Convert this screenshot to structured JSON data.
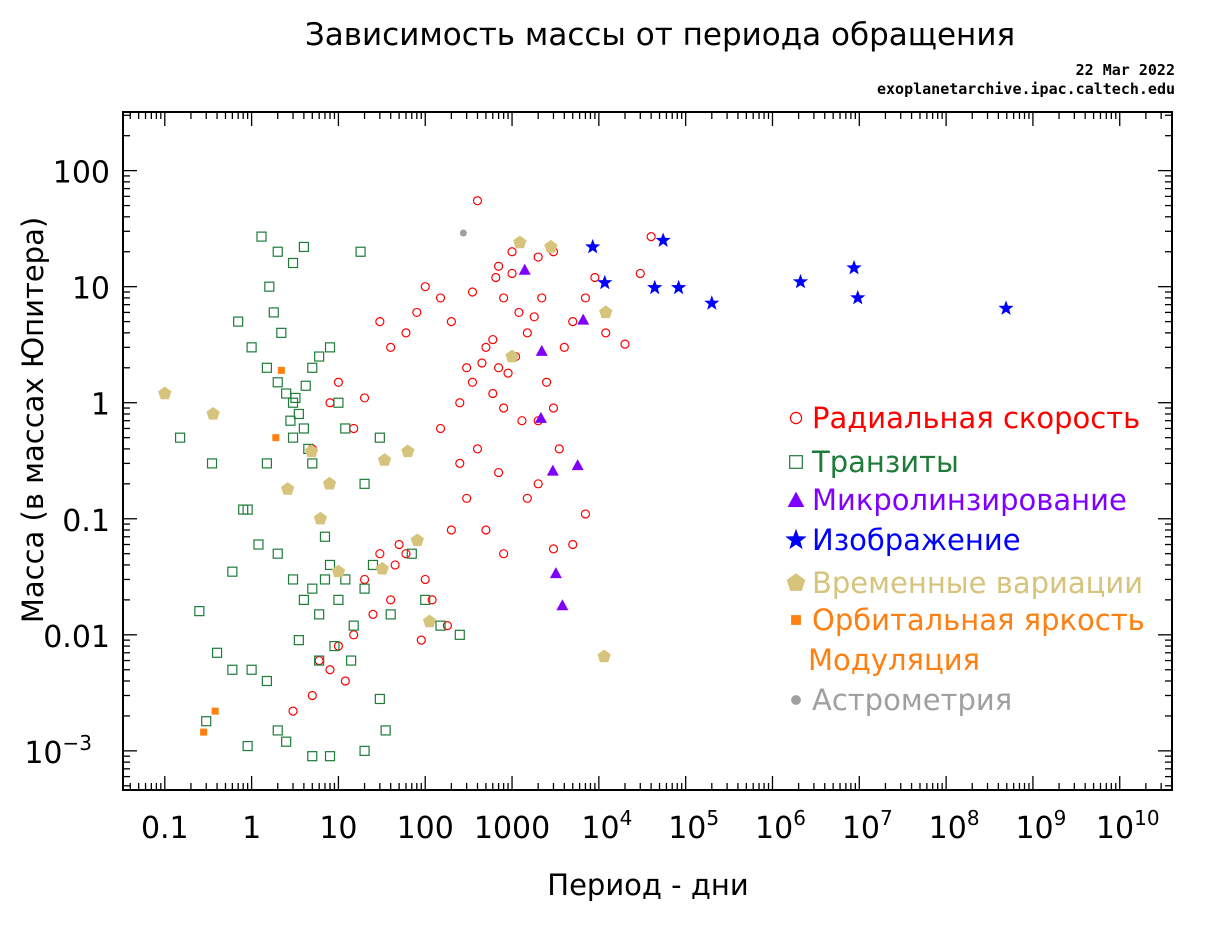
{
  "chart_data": {
    "type": "scatter",
    "title": "Зависимость массы от периода обращения",
    "subtitle_date": "22 Mar 2022",
    "subtitle_source": "exoplanetarchive.ipac.caltech.edu",
    "xlabel": "Период - дни",
    "ylabel": "Масса (в массах Юпитера)",
    "x_scale": "log",
    "y_scale": "log",
    "xlim": [
      0.033,
      40000000000.0
    ],
    "ylim": [
      0.00046,
      320
    ],
    "grid": false,
    "legend_position": "right",
    "x_tick_labels": [
      {
        "value": 0.1,
        "base": "0.1",
        "exp": ""
      },
      {
        "value": 1,
        "base": "1",
        "exp": ""
      },
      {
        "value": 10,
        "base": "10",
        "exp": ""
      },
      {
        "value": 100,
        "base": "100",
        "exp": ""
      },
      {
        "value": 1000,
        "base": "1000",
        "exp": ""
      },
      {
        "value": 10000.0,
        "base": "10",
        "exp": "4"
      },
      {
        "value": 100000.0,
        "base": "10",
        "exp": "5"
      },
      {
        "value": 1000000.0,
        "base": "10",
        "exp": "6"
      },
      {
        "value": 10000000.0,
        "base": "10",
        "exp": "7"
      },
      {
        "value": 100000000.0,
        "base": "10",
        "exp": "8"
      },
      {
        "value": 1000000000.0,
        "base": "10",
        "exp": "9"
      },
      {
        "value": 10000000000.0,
        "base": "10",
        "exp": "10"
      }
    ],
    "y_tick_labels": [
      {
        "value": 100,
        "base": "100",
        "exp": ""
      },
      {
        "value": 10,
        "base": "10",
        "exp": ""
      },
      {
        "value": 1,
        "base": "1",
        "exp": ""
      },
      {
        "value": 0.1,
        "base": "0.1",
        "exp": ""
      },
      {
        "value": 0.01,
        "base": "0.01",
        "exp": ""
      },
      {
        "value": 0.001,
        "base": "10",
        "exp": "−3"
      }
    ],
    "series": [
      {
        "name": "Радиальная скорость",
        "marker": "circle-open",
        "color": "#ff0000",
        "points": [
          [
            400,
            55
          ],
          [
            1000,
            20
          ],
          [
            2000,
            18
          ],
          [
            3000,
            20
          ],
          [
            650,
            12
          ],
          [
            800,
            8
          ],
          [
            1200,
            6
          ],
          [
            1500,
            4
          ],
          [
            500,
            3
          ],
          [
            700,
            2
          ],
          [
            900,
            1.8
          ],
          [
            1100,
            2.5
          ],
          [
            300,
            2
          ],
          [
            350,
            1.5
          ],
          [
            600,
            1.2
          ],
          [
            800,
            0.9
          ],
          [
            1300,
            0.7
          ],
          [
            2500,
            1.5
          ],
          [
            4000,
            3
          ],
          [
            5000,
            5
          ],
          [
            7000,
            8
          ],
          [
            9000,
            12
          ],
          [
            12000,
            4
          ],
          [
            20000,
            3.2
          ],
          [
            30000,
            13
          ],
          [
            40000,
            27
          ],
          [
            200,
            5
          ],
          [
            150,
            8
          ],
          [
            100,
            10
          ],
          [
            80,
            6
          ],
          [
            60,
            4
          ],
          [
            40,
            3
          ],
          [
            30,
            5
          ],
          [
            20,
            1.1
          ],
          [
            15,
            0.6
          ],
          [
            10,
            1.5
          ],
          [
            8,
            1
          ],
          [
            5,
            0.4
          ],
          [
            400,
            0.4
          ],
          [
            250,
            0.3
          ],
          [
            700,
            0.25
          ],
          [
            1500,
            0.15
          ],
          [
            2000,
            0.2
          ],
          [
            3500,
            0.4
          ],
          [
            5000,
            0.06
          ],
          [
            7000,
            0.11
          ],
          [
            500,
            0.08
          ],
          [
            800,
            0.05
          ],
          [
            300,
            0.15
          ],
          [
            200,
            0.08
          ],
          [
            100,
            0.03
          ],
          [
            60,
            0.05
          ],
          [
            40,
            0.02
          ],
          [
            25,
            0.015
          ],
          [
            15,
            0.01
          ],
          [
            10,
            0.008
          ],
          [
            8,
            0.005
          ],
          [
            6,
            0.006
          ],
          [
            20,
            0.03
          ],
          [
            30,
            0.05
          ],
          [
            50,
            0.06
          ],
          [
            120,
            0.02
          ],
          [
            180,
            0.012
          ],
          [
            90,
            0.009
          ],
          [
            3,
            0.0022
          ],
          [
            5,
            0.003
          ],
          [
            12,
            0.004
          ],
          [
            45,
            0.04
          ],
          [
            2000,
            0.7
          ],
          [
            3000,
            0.9
          ],
          [
            600,
            3.5
          ],
          [
            450,
            2.2
          ],
          [
            1800,
            5.5
          ],
          [
            2200,
            8
          ],
          [
            1000,
            13
          ],
          [
            700,
            15
          ],
          [
            350,
            9
          ],
          [
            250,
            1
          ],
          [
            150,
            0.6
          ],
          [
            3000,
            0.055
          ]
        ]
      },
      {
        "name": "Транзиты",
        "marker": "square-open",
        "color": "#1e7b3a",
        "points": [
          [
            1.3,
            27
          ],
          [
            2,
            20
          ],
          [
            3,
            16
          ],
          [
            4,
            22
          ],
          [
            18,
            20
          ],
          [
            0.7,
            5
          ],
          [
            1,
            3
          ],
          [
            1.5,
            2
          ],
          [
            2,
            1.5
          ],
          [
            2.5,
            1.2
          ],
          [
            3,
            1
          ],
          [
            3.5,
            0.8
          ],
          [
            4,
            0.6
          ],
          [
            3,
            0.5
          ],
          [
            4.5,
            0.4
          ],
          [
            5,
            0.3
          ],
          [
            2.8,
            0.7
          ],
          [
            3.2,
            1.1
          ],
          [
            4.2,
            1.4
          ],
          [
            5,
            2
          ],
          [
            6,
            2.5
          ],
          [
            2.2,
            4
          ],
          [
            1.8,
            6
          ],
          [
            1.6,
            10
          ],
          [
            8,
            3
          ],
          [
            10,
            1
          ],
          [
            12,
            0.6
          ],
          [
            20,
            0.2
          ],
          [
            30,
            0.5
          ],
          [
            0.15,
            0.5
          ],
          [
            0.35,
            0.3
          ],
          [
            0.9,
            0.12
          ],
          [
            1.2,
            0.06
          ],
          [
            2,
            0.05
          ],
          [
            3,
            0.03
          ],
          [
            4,
            0.02
          ],
          [
            5,
            0.025
          ],
          [
            6,
            0.015
          ],
          [
            7,
            0.03
          ],
          [
            8,
            0.04
          ],
          [
            10,
            0.02
          ],
          [
            12,
            0.03
          ],
          [
            15,
            0.012
          ],
          [
            20,
            0.025
          ],
          [
            25,
            0.04
          ],
          [
            40,
            0.015
          ],
          [
            70,
            0.05
          ],
          [
            100,
            0.02
          ],
          [
            150,
            0.012
          ],
          [
            250,
            0.01
          ],
          [
            0.25,
            0.016
          ],
          [
            0.4,
            0.007
          ],
          [
            0.6,
            0.005
          ],
          [
            1,
            0.005
          ],
          [
            1.5,
            0.004
          ],
          [
            2,
            0.0015
          ],
          [
            2.5,
            0.0012
          ],
          [
            5,
            0.0009
          ],
          [
            8,
            0.0009
          ],
          [
            20,
            0.001
          ],
          [
            30,
            0.0028
          ],
          [
            35,
            0.0015
          ],
          [
            0.3,
            0.0018
          ],
          [
            0.9,
            0.0011
          ],
          [
            3.5,
            0.009
          ],
          [
            6,
            0.006
          ],
          [
            9,
            0.008
          ],
          [
            14,
            0.006
          ],
          [
            0.6,
            0.035
          ],
          [
            0.8,
            0.12
          ],
          [
            1.5,
            0.3
          ],
          [
            7,
            0.07
          ]
        ]
      },
      {
        "name": "Микролинзирование",
        "marker": "triangle",
        "color": "#8000ff",
        "points": [
          [
            1400,
            14
          ],
          [
            2200,
            2.8
          ],
          [
            2150,
            0.74
          ],
          [
            2950,
            0.26
          ],
          [
            5700,
            0.29
          ],
          [
            3200,
            0.034
          ],
          [
            3800,
            0.018
          ],
          [
            6600,
            5.2
          ]
        ]
      },
      {
        "name": "Изображение",
        "marker": "star",
        "color": "#0000ff",
        "points": [
          [
            8500,
            22
          ],
          [
            11700,
            10.8
          ],
          [
            44000,
            9.8
          ],
          [
            55000,
            25
          ],
          [
            83000,
            9.8
          ],
          [
            200000,
            7.2
          ],
          [
            2100000,
            11
          ],
          [
            8700000,
            14.5
          ],
          [
            9600000,
            8
          ],
          [
            490000000,
            6.5
          ]
        ]
      },
      {
        "name": "Временные вариации",
        "marker": "pentagon",
        "color": "#d6c47c",
        "points": [
          [
            0.1,
            1.2
          ],
          [
            0.36,
            0.8
          ],
          [
            11500,
            0.0065
          ],
          [
            1230,
            24
          ],
          [
            2800,
            22
          ],
          [
            12000,
            6
          ],
          [
            1000,
            2.5
          ],
          [
            63,
            0.38
          ],
          [
            2.6,
            0.18
          ],
          [
            4.9,
            0.38
          ],
          [
            7.9,
            0.2
          ],
          [
            10,
            0.035
          ],
          [
            32,
            0.037
          ],
          [
            81,
            0.065
          ],
          [
            112,
            0.013
          ],
          [
            34,
            0.32
          ],
          [
            6.2,
            0.1
          ]
        ]
      },
      {
        "name": "Орбитальная яркость Модуляция",
        "name_line1": "Орбитальная яркость",
        "name_line2": "Модуляция",
        "marker": "square",
        "color": "#ff7f10",
        "points": [
          [
            0.28,
            0.00145
          ],
          [
            0.38,
            0.0022
          ],
          [
            1.9,
            0.5
          ],
          [
            2.2,
            1.9
          ]
        ]
      },
      {
        "name": "Астрометрия",
        "marker": "dot",
        "color": "#a0a0a0",
        "points": [
          [
            275,
            29
          ]
        ]
      }
    ]
  }
}
